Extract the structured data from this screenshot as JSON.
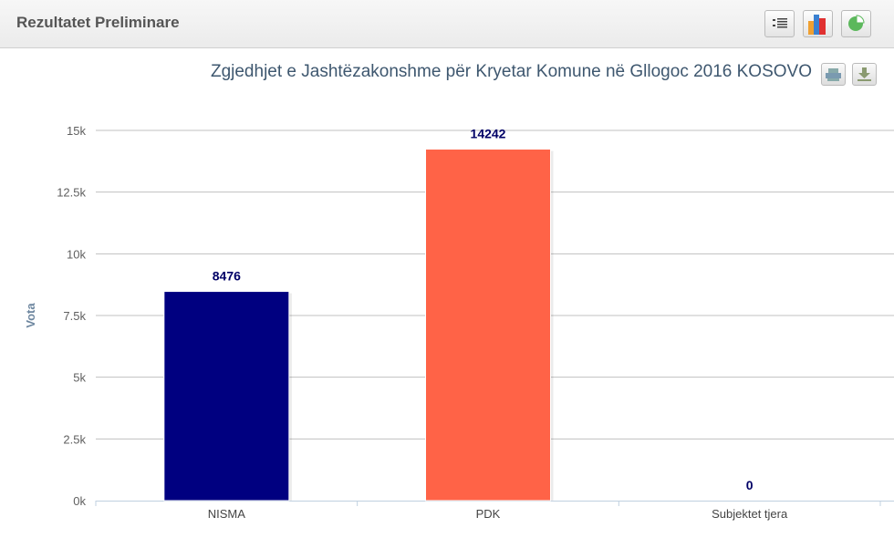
{
  "panel": {
    "title": "Rezultatet Preliminare",
    "buttons": [
      "list-icon",
      "bar-chart-icon",
      "pie-chart-icon"
    ]
  },
  "chart_data": {
    "type": "bar",
    "title": "Zgjedhjet e Jashtëzakonshme për Kryetar Komune në Gllogoc 2016 KOSOVO",
    "ylabel": "Vota",
    "xlabel": "",
    "categories": [
      "NISMA",
      "PDK",
      "Subjektet tjera"
    ],
    "values": [
      8476,
      14242,
      0
    ],
    "data_labels": [
      "8476",
      "14242",
      "0"
    ],
    "colors": [
      "#000080",
      "#ff6347",
      "#7cb5ec"
    ],
    "ylim": [
      0,
      15000
    ],
    "yticks": [
      "0k",
      "2.5k",
      "5k",
      "7.5k",
      "10k",
      "12.5k",
      "15k"
    ],
    "grid": true,
    "legend": "none"
  }
}
